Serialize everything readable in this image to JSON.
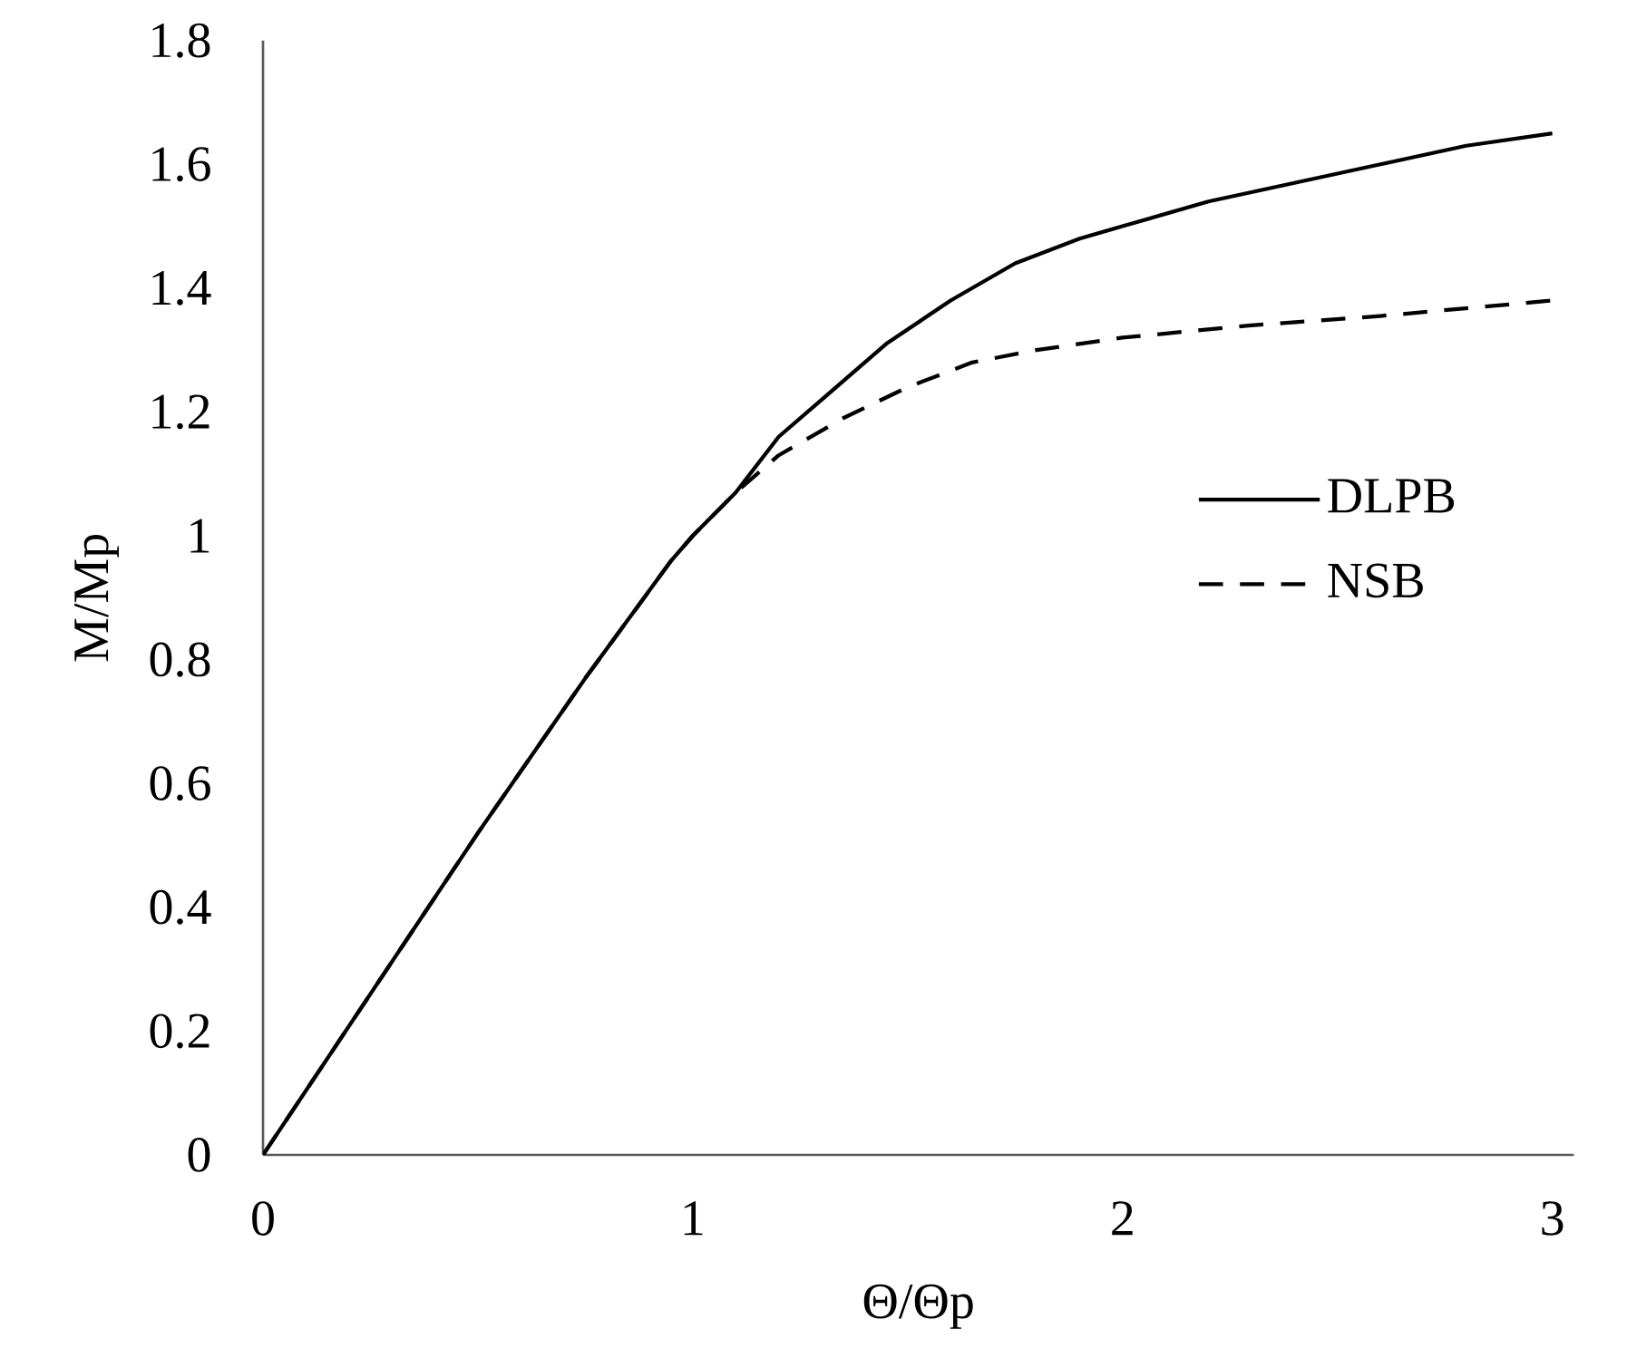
{
  "chart_data": {
    "type": "line",
    "xlabel": "Θ/Θp",
    "ylabel": "M/Mp",
    "xlim": [
      0,
      3.05
    ],
    "ylim": [
      0,
      1.8
    ],
    "xticks": [
      0,
      1,
      2,
      3
    ],
    "yticks": [
      0,
      0.2,
      0.4,
      0.6,
      0.8,
      1,
      1.2,
      1.4,
      1.6,
      1.8
    ],
    "grid": false,
    "legend": "right",
    "marker": "none",
    "series": [
      {
        "name": "DLPB",
        "color": "#000000",
        "line_style": "solid",
        "x": [
          0,
          0.25,
          0.5,
          0.75,
          0.95,
          1.0,
          1.1,
          1.2,
          1.3,
          1.45,
          1.6,
          1.75,
          1.9,
          2.0,
          2.2,
          2.4,
          2.6,
          2.8,
          3.0
        ],
        "values": [
          0,
          0.26,
          0.52,
          0.77,
          0.96,
          1.0,
          1.07,
          1.16,
          1.22,
          1.31,
          1.38,
          1.44,
          1.48,
          1.5,
          1.54,
          1.57,
          1.6,
          1.63,
          1.65
        ]
      },
      {
        "name": "NSB",
        "color": "#000000",
        "line_style": "dashed",
        "x": [
          0,
          0.25,
          0.5,
          0.75,
          0.95,
          1.0,
          1.1,
          1.2,
          1.35,
          1.5,
          1.65,
          1.8,
          2.0,
          2.3,
          2.6,
          3.0
        ],
        "values": [
          0,
          0.26,
          0.52,
          0.77,
          0.96,
          1.0,
          1.07,
          1.13,
          1.19,
          1.24,
          1.28,
          1.3,
          1.32,
          1.34,
          1.355,
          1.38
        ]
      }
    ]
  }
}
